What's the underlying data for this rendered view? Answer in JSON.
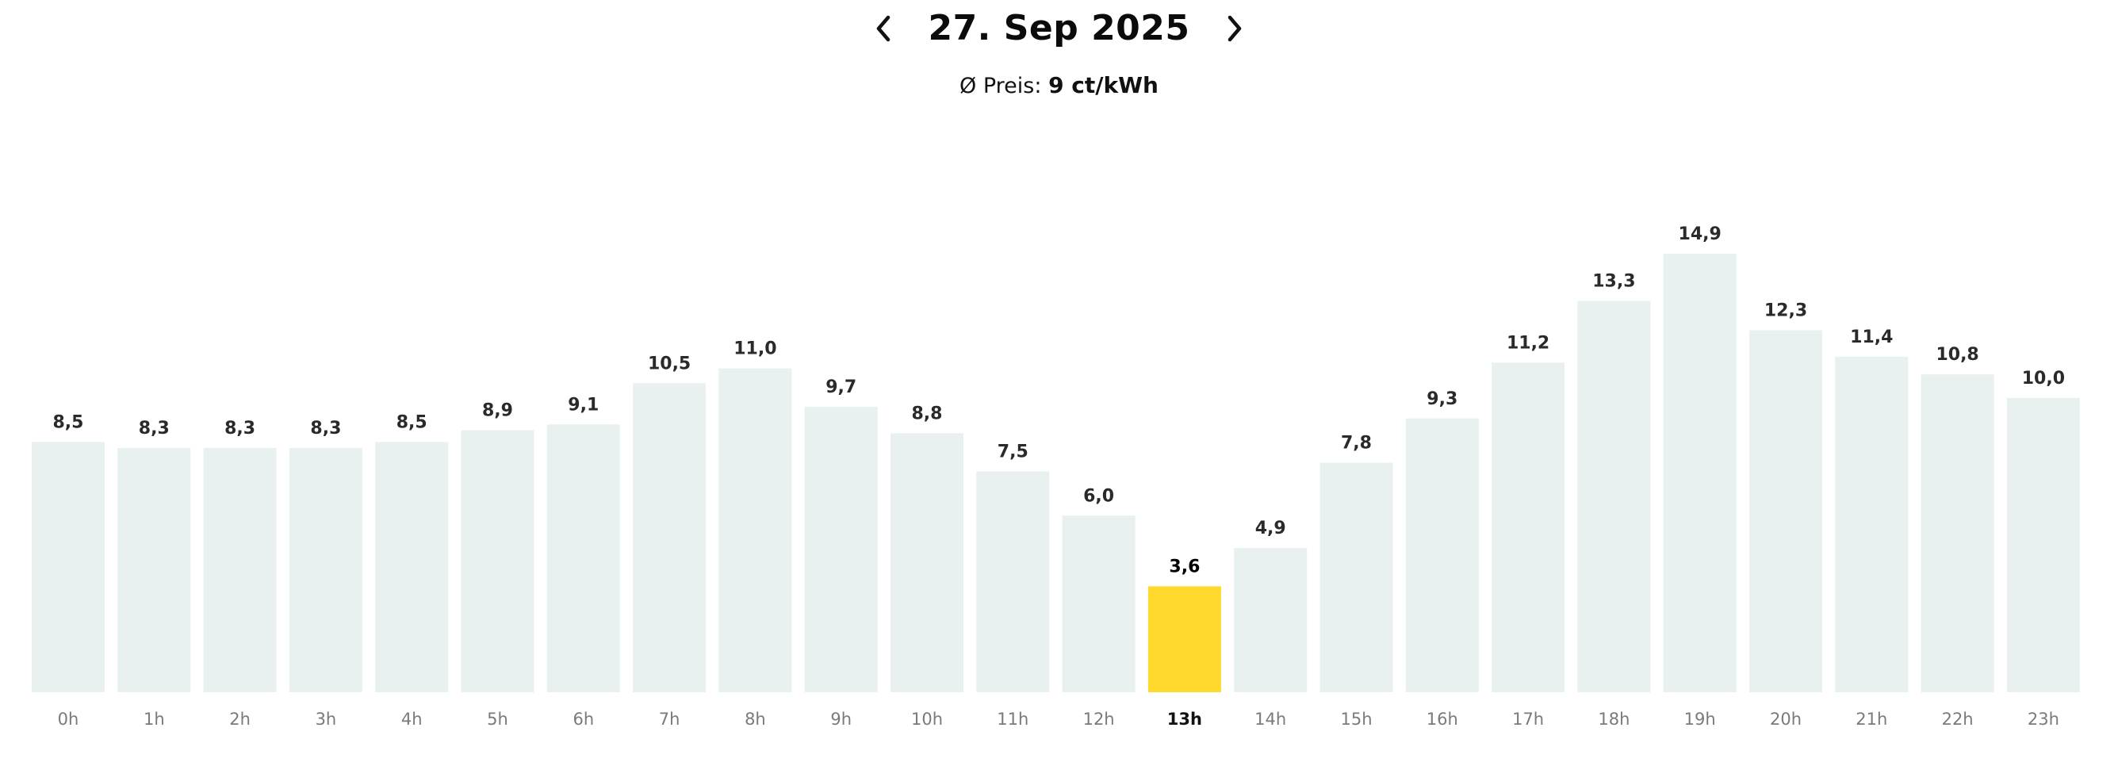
{
  "header": {
    "date_title": "27. Sep 2025",
    "prev_icon": "chevron-left-icon",
    "next_icon": "chevron-right-icon",
    "avg_label": "Ø Preis:",
    "avg_value": "9 ct/kWh"
  },
  "colors": {
    "bar": "#e8f0f0",
    "highlight": "#ffd92e",
    "text": "#111111",
    "tick": "#7a7a7a"
  },
  "chart_data": {
    "type": "bar",
    "title": "",
    "xlabel": "",
    "ylabel": "",
    "categories": [
      "0h",
      "1h",
      "2h",
      "3h",
      "4h",
      "5h",
      "6h",
      "7h",
      "8h",
      "9h",
      "10h",
      "11h",
      "12h",
      "13h",
      "14h",
      "15h",
      "16h",
      "17h",
      "18h",
      "19h",
      "20h",
      "21h",
      "22h",
      "23h"
    ],
    "values": [
      8.5,
      8.3,
      8.3,
      8.3,
      8.5,
      8.9,
      9.1,
      10.5,
      11.0,
      9.7,
      8.8,
      7.5,
      6.0,
      3.6,
      4.9,
      7.8,
      9.3,
      11.2,
      13.3,
      14.9,
      12.3,
      11.4,
      10.8,
      10.0
    ],
    "value_labels": [
      "8,5",
      "8,3",
      "8,3",
      "8,3",
      "8,5",
      "8,9",
      "9,1",
      "10,5",
      "11,0",
      "9,7",
      "8,8",
      "7,5",
      "6,0",
      "3,6",
      "4,9",
      "7,8",
      "9,3",
      "11,2",
      "13,3",
      "14,9",
      "12,3",
      "11,4",
      "10,8",
      "10,0"
    ],
    "highlighted_category": "13h",
    "ylim": [
      0,
      14.9
    ],
    "grid": false,
    "legend": "none"
  }
}
